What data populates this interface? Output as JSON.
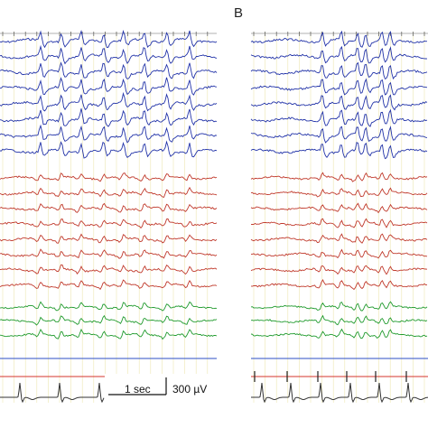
{
  "figure": {
    "panel_b_label": "B",
    "scale_bar": {
      "time_label": "1 sec",
      "amplitude_label": "300 µV"
    },
    "colors": {
      "grid_minor": "#ece7b2",
      "grid_major": "#d8cf6a",
      "blue_channels": "#2233a8",
      "red_channels": "#c0392b",
      "green_channels": "#1f9a2c",
      "event_channel": "#2d4fc4",
      "marker_channel": "#d6342c",
      "ecg_channel": "#333333"
    },
    "panels": [
      {
        "id": "A",
        "blue_channel_count": 8,
        "red_channel_count": 8,
        "green_channel_count": 3,
        "has_event_line": true,
        "has_marker_line": true,
        "has_ecg": true
      },
      {
        "id": "B",
        "blue_channel_count": 8,
        "red_channel_count": 8,
        "green_channel_count": 3,
        "has_event_line": true,
        "has_marker_line": true,
        "has_ecg": true
      }
    ]
  }
}
